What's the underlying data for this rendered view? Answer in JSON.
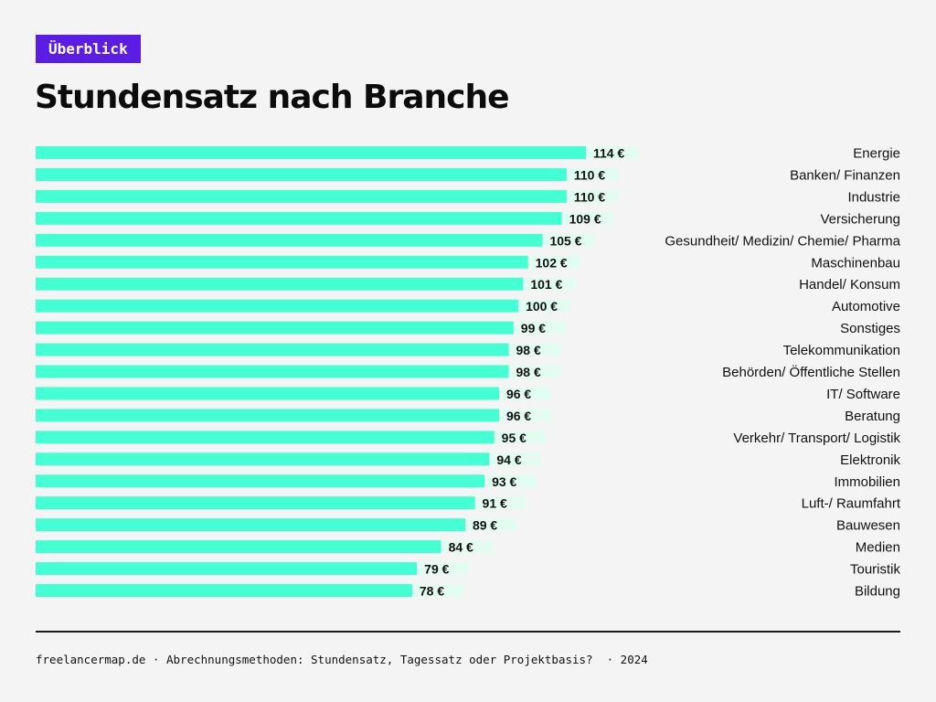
{
  "header": {
    "badge": "Überblick",
    "title": "Stundensatz nach Branche"
  },
  "footer": {
    "source": "freelancermap.de · Abrechnungsmethoden: Stundensatz, Tagessatz oder Projektbasis?  · 2024"
  },
  "colors": {
    "bar": "#44ffd2",
    "label_bg": "#e3fcf2",
    "badge": "#5b1de3"
  },
  "chart_data": {
    "type": "bar",
    "orientation": "horizontal",
    "title": "Stundensatz nach Branche",
    "unit": "€",
    "xlim": [
      0,
      114
    ],
    "categories": [
      "Energie",
      "Banken/ Finanzen",
      "Industrie",
      "Versicherung",
      "Gesundheit/ Medizin/ Chemie/ Pharma",
      "Maschinenbau",
      "Handel/ Konsum",
      "Automotive",
      "Sonstiges",
      "Telekommunikation",
      "Behörden/ Öffentliche Stellen",
      "IT/ Software",
      "Beratung",
      "Verkehr/ Transport/ Logistik",
      "Elektronik",
      "Immobilien",
      "Luft-/ Raumfahrt",
      "Bauwesen",
      "Medien",
      "Touristik",
      "Bildung"
    ],
    "values": [
      114,
      110,
      110,
      109,
      105,
      102,
      101,
      100,
      99,
      98,
      98,
      96,
      96,
      95,
      94,
      93,
      91,
      89,
      84,
      79,
      78
    ],
    "labels": [
      "114 €",
      "110 €",
      "110 €",
      "109 €",
      "105 €",
      "102 €",
      "101 €",
      "100 €",
      "99 €",
      "98 €",
      "98 €",
      "96 €",
      "96 €",
      "95 €",
      "94 €",
      "93 €",
      "91 €",
      "89 €",
      "84 €",
      "79 €",
      "78 €"
    ]
  }
}
